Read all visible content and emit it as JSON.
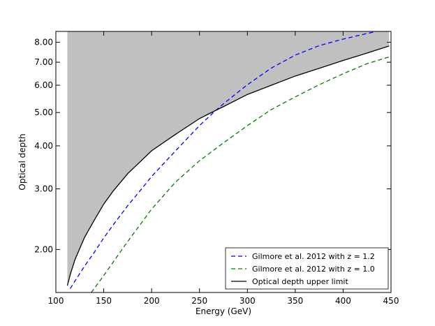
{
  "chart_data": {
    "type": "line",
    "xlabel": "Energy (GeV)",
    "ylabel": "Optical depth",
    "xlim": [
      100,
      450
    ],
    "ylim": [
      1.5,
      8.6
    ],
    "yscale": "log",
    "x_ticks": [
      100,
      150,
      200,
      250,
      300,
      350,
      400,
      450
    ],
    "y_ticks": [
      2.0,
      3.0,
      4.0,
      5.0,
      6.0,
      7.0,
      8.0
    ],
    "y_tick_labels": [
      "2.00",
      "3.00",
      "4.00",
      "5.00",
      "6.00",
      "7.00",
      "8.00"
    ],
    "grid": false,
    "legend_position": "lower-right",
    "shaded_region": {
      "description": "gray fill above the optical depth upper limit curve",
      "color": "#c0c0c0",
      "bounded_by_series": "Optical depth upper limit"
    },
    "series": [
      {
        "name": "Gilmore et al. 2012 with z = 1.2",
        "color": "#0000ff",
        "style": "dashed",
        "x": [
          115,
          120,
          130,
          140,
          150,
          160,
          175,
          190,
          200,
          225,
          250,
          265,
          275,
          300,
          325,
          350,
          375,
          400,
          425,
          435
        ],
        "y": [
          1.54,
          1.62,
          1.79,
          1.96,
          2.16,
          2.36,
          2.68,
          3.01,
          3.26,
          3.87,
          4.58,
          5.01,
          5.3,
          6.02,
          6.73,
          7.34,
          7.82,
          8.17,
          8.48,
          8.6
        ]
      },
      {
        "name": "Gilmore et al. 2012 with z = 1.0",
        "color": "#008000",
        "style": "dashed",
        "x": [
          137,
          150,
          175,
          200,
          225,
          250,
          275,
          300,
          325,
          350,
          375,
          400,
          425,
          450
        ],
        "y": [
          1.5,
          1.68,
          2.11,
          2.62,
          3.14,
          3.62,
          4.08,
          4.58,
          5.1,
          5.55,
          6.02,
          6.48,
          6.93,
          7.28
        ]
      },
      {
        "name": "Optical depth upper limit",
        "color": "#000000",
        "style": "solid",
        "x": [
          112,
          115,
          120,
          130,
          140,
          150,
          160,
          175,
          200,
          225,
          250,
          260,
          275,
          300,
          325,
          350,
          375,
          400,
          425,
          448
        ],
        "y": [
          1.57,
          1.69,
          1.87,
          2.17,
          2.43,
          2.71,
          2.96,
          3.32,
          3.87,
          4.32,
          4.8,
          4.96,
          5.2,
          5.64,
          6.0,
          6.38,
          6.72,
          7.08,
          7.44,
          7.8
        ]
      }
    ]
  }
}
